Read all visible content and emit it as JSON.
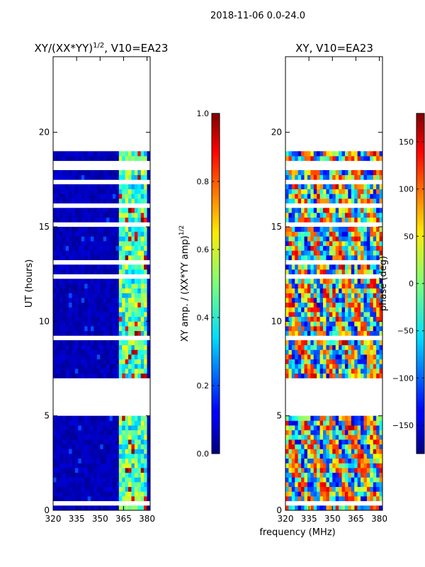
{
  "chart_data": {
    "type": "heatmap",
    "suptitle": "2018-11-06 0.0-24.0",
    "shared_xlabel": "frequency (MHz)",
    "panels": [
      {
        "title_main": "XY/(XX*YY)",
        "title_sup": "1/2",
        "title_tail": ", V10=EA23",
        "ylabel": "UT (hours)",
        "xlim": [
          320,
          382
        ],
        "ylim": [
          0,
          24
        ],
        "xticks": [
          320,
          335,
          350,
          365,
          380
        ],
        "yticks": [
          0,
          5,
          10,
          15,
          20
        ],
        "colormap": "jet",
        "colorbar": {
          "label_main": "XY amp. / (XX*YY amp)",
          "label_sup": "1/2",
          "range": [
            0.0,
            1.0
          ],
          "ticks": [
            "0.0",
            "0.2",
            "0.4",
            "0.6",
            "0.8",
            "1.0"
          ]
        },
        "data_extent_hours": [
          [
            0,
            5
          ],
          [
            7,
            19
          ]
        ],
        "description": "Low normalized amplitude (~0.0-0.1) across 320-362 MHz; higher amplitude (~0.3-0.6, occasionally ~1.0) in channels ~362-380 MHz"
      },
      {
        "title": "XY, V10=EA23",
        "ylabel": "",
        "xlim": [
          320,
          382
        ],
        "ylim": [
          0,
          24
        ],
        "xticks": [
          320,
          335,
          350,
          365,
          380
        ],
        "yticks": [
          0,
          5,
          10,
          15,
          20
        ],
        "colormap": "jet",
        "colorbar": {
          "label": "phase (deg)",
          "range": [
            -180,
            180
          ],
          "ticks": [
            "−150",
            "−100",
            "−50",
            "0",
            "50",
            "100",
            "150"
          ]
        },
        "data_extent_hours": [
          [
            0,
            5
          ],
          [
            7,
            19
          ]
        ],
        "description": "XY phase in degrees, spanning the full -180 to 180 range with noisy structure"
      }
    ]
  }
}
